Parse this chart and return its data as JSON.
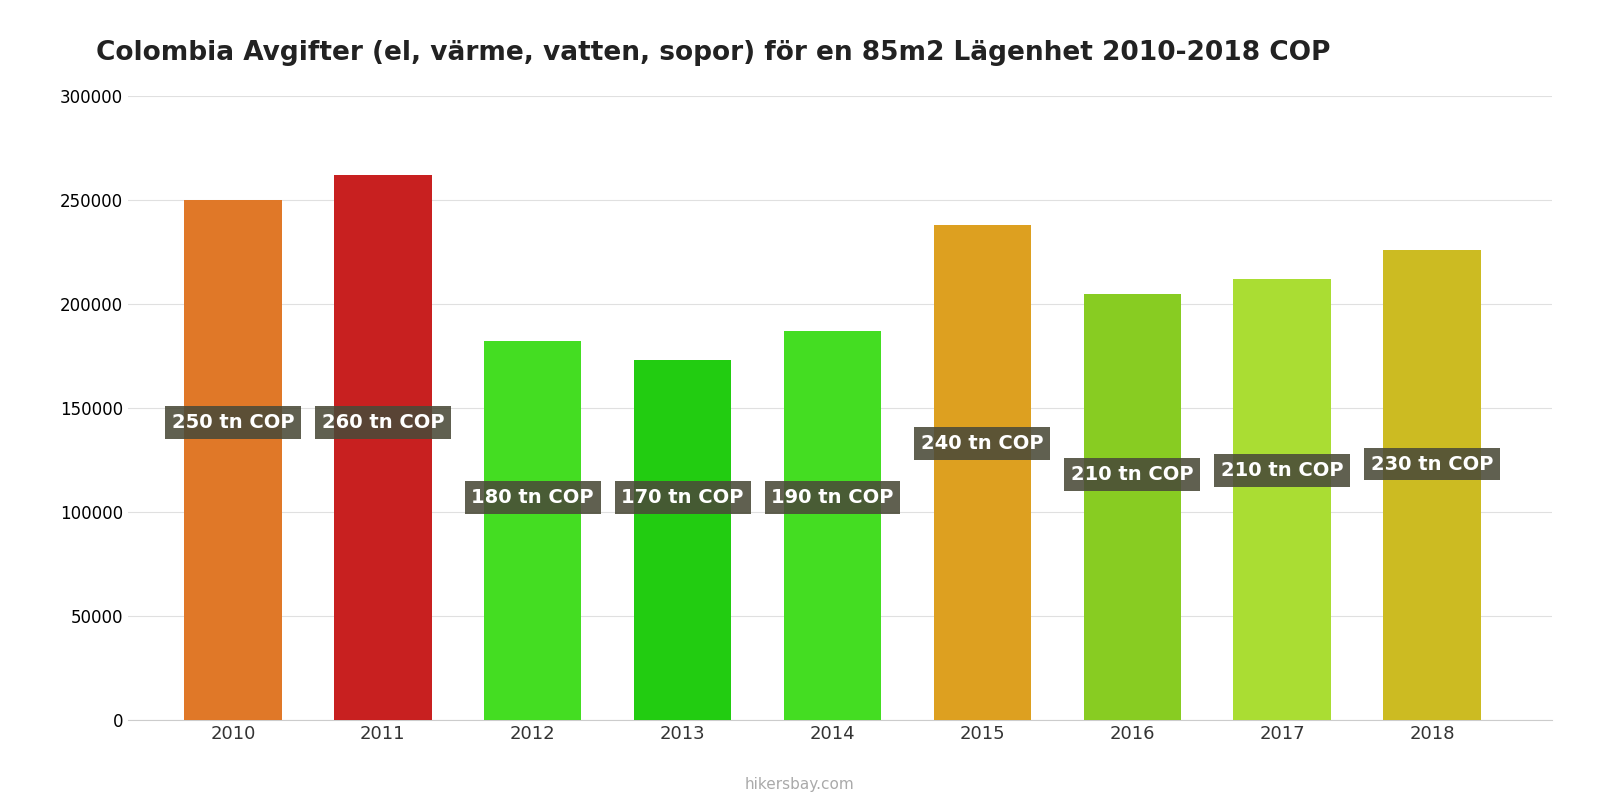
{
  "title": "Colombia Avgifter (el, värme, vatten, sopor) för en 85m2 Lägenhet 2010-2018 COP",
  "years": [
    2010,
    2011,
    2012,
    2013,
    2014,
    2015,
    2016,
    2017,
    2018
  ],
  "values": [
    250000,
    262000,
    182000,
    173000,
    187000,
    238000,
    205000,
    212000,
    226000
  ],
  "labels": [
    "250 tn COP",
    "260 tn COP",
    "180 tn COP",
    "170 tn COP",
    "190 tn COP",
    "240 tn COP",
    "210 tn COP",
    "210 tn COP",
    "230 tn COP"
  ],
  "bar_colors": [
    "#E07828",
    "#C82020",
    "#44DD22",
    "#22CC11",
    "#44DD22",
    "#DDA020",
    "#88CC22",
    "#AADD33",
    "#CCBB22"
  ],
  "ylim": [
    0,
    300000
  ],
  "yticks": [
    0,
    50000,
    100000,
    150000,
    200000,
    250000,
    300000
  ],
  "background_color": "#ffffff",
  "label_box_color": "#4a4a38",
  "label_text_color": "#ffffff",
  "watermark": "hikersbay.com",
  "title_fontsize": 19,
  "label_fontsize": 14,
  "label_y_positions": [
    143000,
    143000,
    107000,
    107000,
    107000,
    133000,
    118000,
    120000,
    123000
  ]
}
